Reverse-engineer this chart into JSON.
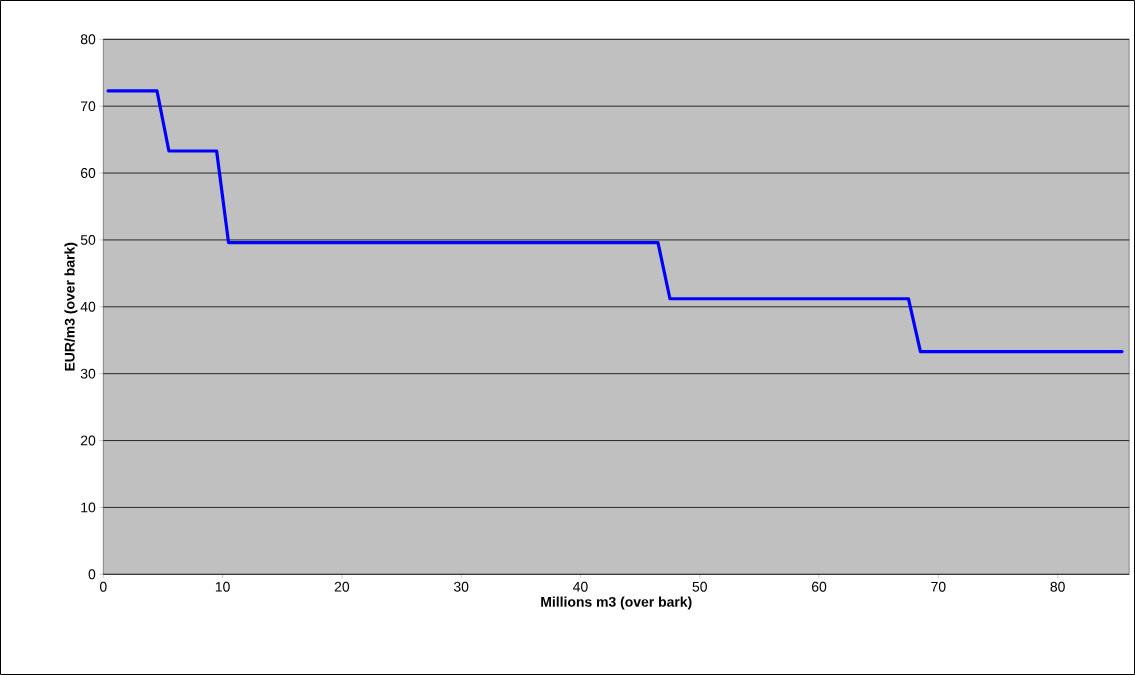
{
  "chart_data": {
    "type": "line",
    "xlabel": "Millions m3 (over bark)",
    "ylabel": "EUR/m3 (over bark)",
    "xlim": [
      0,
      86
    ],
    "xticks": [
      0,
      10,
      20,
      30,
      40,
      50,
      60,
      70,
      80
    ],
    "ylim": [
      0,
      80
    ],
    "yticks": [
      0,
      10,
      20,
      30,
      40,
      50,
      60,
      70,
      80
    ],
    "grid": "y",
    "series": [
      {
        "color": "#0000ff",
        "x": [
          0.4,
          4.5,
          5.5,
          9.5,
          10.5,
          46.5,
          47.5,
          67.5,
          68.5,
          85.4
        ],
        "values": [
          72.3,
          72.3,
          63.3,
          63.3,
          49.6,
          49.6,
          41.2,
          41.2,
          33.3,
          33.3
        ]
      }
    ]
  }
}
